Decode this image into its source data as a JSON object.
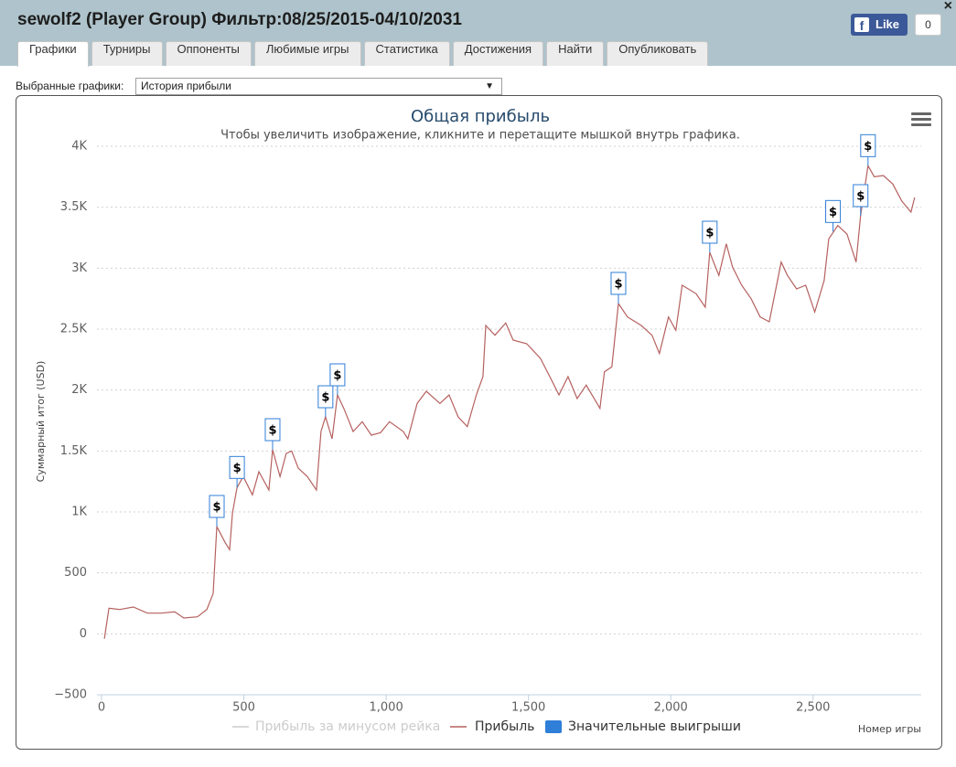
{
  "header": {
    "title": "sewolf2 (Player Group) Фильтр:08/25/2015-04/10/2031",
    "close": "×",
    "like": "Like",
    "like_count": 0
  },
  "tabs": [
    "Графики",
    "Турниры",
    "Оппоненты",
    "Любимые игры",
    "Статистика",
    "Достижения",
    "Найти",
    "Опубликовать"
  ],
  "active_tab": 0,
  "selector": {
    "label": "Выбранные графики:",
    "value": "История прибыли",
    "arrow": "▼"
  },
  "chart_data": {
    "type": "line",
    "title": "Общая прибыль",
    "subtitle": "Чтобы увеличить изображение, кликните и перетащите мышкой внутрь графика.",
    "x_label": "Номер игры",
    "y_label": "Суммарный итог (USD)",
    "xlim": [
      0,
      2880
    ],
    "ylim": [
      -500,
      4000
    ],
    "xticks": [
      0,
      500,
      {
        "value": 1000,
        "label": "1,000"
      },
      {
        "value": 1500,
        "label": "1,500"
      },
      {
        "value": 2000,
        "label": "2,000"
      },
      {
        "value": 2500,
        "label": "2,500"
      }
    ],
    "yticks": [
      {
        "value": -500,
        "label": "−500"
      },
      0,
      500,
      {
        "value": 1000,
        "label": "1K"
      },
      {
        "value": 1500,
        "label": "1.5K"
      },
      {
        "value": 2000,
        "label": "2K"
      },
      {
        "value": 2500,
        "label": "2.5K"
      },
      {
        "value": 3000,
        "label": "3K"
      },
      {
        "value": 3500,
        "label": "3.5K"
      },
      {
        "value": 4000,
        "label": "4K"
      }
    ],
    "grid": true,
    "series": [
      {
        "name": "Прибыль за минусом рейка",
        "color": "#cccccc",
        "visible": false,
        "x": [],
        "values": []
      },
      {
        "name": "Прибыль",
        "color": "#b5615f",
        "visible": true,
        "x": [
          10,
          26,
          64,
          112,
          161,
          209,
          257,
          289,
          337,
          370,
          392,
          405,
          434,
          450,
          460,
          476,
          498,
          530,
          553,
          588,
          601,
          627,
          649,
          668,
          691,
          723,
          755,
          771,
          787,
          810,
          829,
          851,
          884,
          916,
          948,
          980,
          1012,
          1060,
          1076,
          1109,
          1141,
          1189,
          1221,
          1253,
          1285,
          1317,
          1340,
          1350,
          1382,
          1420,
          1446,
          1494,
          1542,
          1575,
          1607,
          1639,
          1671,
          1703,
          1751,
          1767,
          1793,
          1816,
          1848,
          1896,
          1934,
          1960,
          1992,
          2018,
          2040,
          2089,
          2121,
          2137,
          2169,
          2195,
          2217,
          2249,
          2282,
          2314,
          2346,
          2388,
          2410,
          2442,
          2474,
          2506,
          2539,
          2555,
          2587,
          2619,
          2651,
          2667,
          2693,
          2715,
          2747,
          2780,
          2812,
          2844,
          2857
        ],
        "values": [
          -40,
          210,
          200,
          220,
          170,
          170,
          180,
          130,
          140,
          200,
          330,
          880,
          750,
          690,
          990,
          1200,
          1290,
          1140,
          1330,
          1180,
          1510,
          1290,
          1480,
          1500,
          1360,
          1290,
          1180,
          1660,
          1780,
          1600,
          1960,
          1850,
          1660,
          1740,
          1630,
          1650,
          1740,
          1660,
          1600,
          1890,
          1990,
          1890,
          1960,
          1780,
          1700,
          1960,
          2110,
          2530,
          2450,
          2550,
          2410,
          2380,
          2260,
          2110,
          1960,
          2110,
          1930,
          2040,
          1850,
          2150,
          2190,
          2710,
          2600,
          2530,
          2450,
          2300,
          2600,
          2490,
          2860,
          2790,
          2680,
          3130,
          2940,
          3200,
          3010,
          2860,
          2750,
          2600,
          2560,
          3050,
          2940,
          2830,
          2860,
          2640,
          2900,
          3240,
          3350,
          3280,
          3050,
          3430,
          3840,
          3750,
          3760,
          3690,
          3550,
          3460,
          3580
        ]
      },
      {
        "name": "Значительные выигрыши",
        "color": "#2f7ed8",
        "visible": true,
        "marker": "flag",
        "x": [
          405,
          476,
          601,
          787,
          829,
          1816,
          2137,
          2570,
          2667,
          2693
        ],
        "values": [
          880,
          1200,
          1510,
          1780,
          1960,
          2710,
          3130,
          3300,
          3430,
          3840
        ],
        "labels": [
          "$",
          "$",
          "$",
          "$",
          "$",
          "$",
          "$",
          "$",
          "$",
          "$"
        ]
      }
    ]
  }
}
